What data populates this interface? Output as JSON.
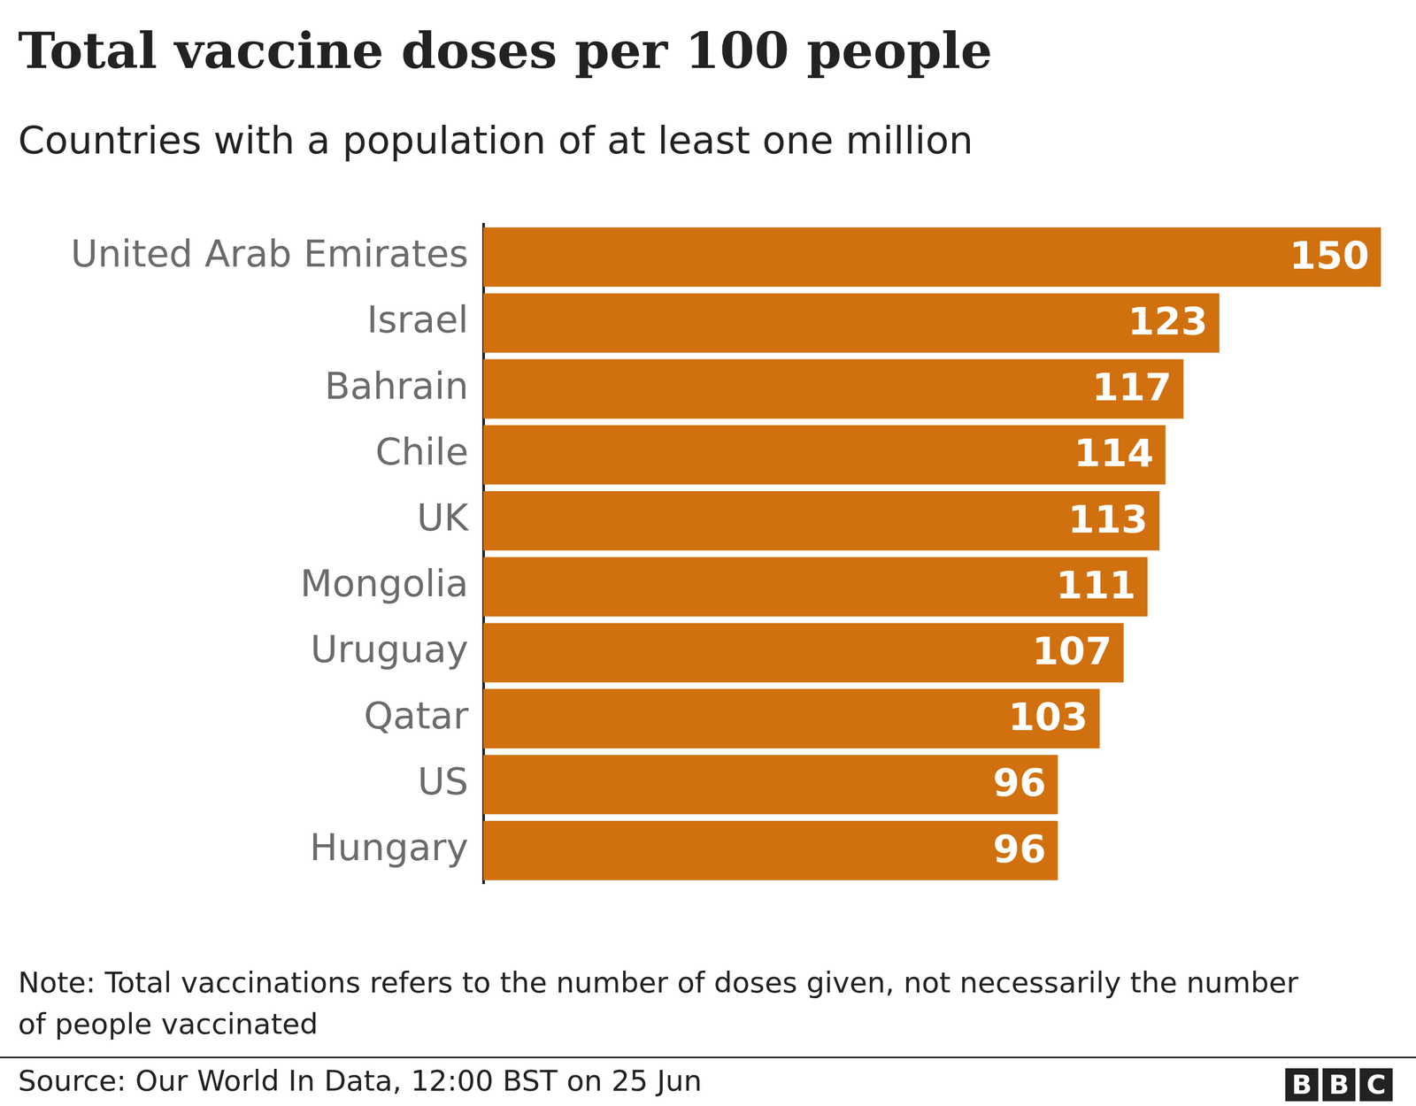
{
  "chart_data": {
    "type": "bar",
    "orientation": "horizontal",
    "title": "Total vaccine doses per 100 people",
    "subtitle": "Countries with a population of at least one million",
    "categories": [
      "United Arab Emirates",
      "Israel",
      "Bahrain",
      "Chile",
      "UK",
      "Mongolia",
      "Uruguay",
      "Qatar",
      "US",
      "Hungary"
    ],
    "values": [
      150,
      123,
      117,
      114,
      113,
      111,
      107,
      103,
      96,
      96
    ],
    "color": "#d1700e",
    "xlim": [
      0,
      150
    ],
    "grid": false,
    "data_labels": true,
    "tick_labels": "y",
    "note": "Note: Total vaccinations refers to the number of doses given, not necessarily the number of people vaccinated",
    "source": "Source: Our World In Data, 12:00 BST on 25 Jun",
    "logo": "BBC"
  }
}
